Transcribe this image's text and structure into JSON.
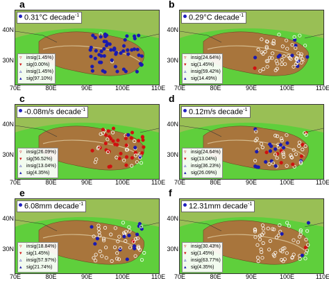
{
  "axes": {
    "x_ticks": [
      "70E",
      "80E",
      "90E",
      "100E",
      "110E"
    ],
    "y_ticks": [
      "40N",
      "30N"
    ]
  },
  "legend_labels": [
    "insig",
    "sig",
    "insig",
    "sig"
  ],
  "colors": {
    "increase": "#1a1ab0",
    "decrease": "#d01010",
    "plateau": "#a8753c",
    "lowland": "#5fcf3c"
  },
  "panels": [
    {
      "letter": "a",
      "title": "0.31°C decade",
      "superscript": "-1",
      "pct": [
        "(1.45%)",
        "(0.00%)",
        "(1.45%)",
        "(97.10%)"
      ]
    },
    {
      "letter": "b",
      "title": "0.29°C decade",
      "superscript": "-1",
      "pct": [
        "(24.64%)",
        "(1.45%)",
        "(59.42%)",
        "(14.49%)"
      ]
    },
    {
      "letter": "c",
      "title": "-0.08m/s decade",
      "superscript": "-1",
      "pct": [
        "(26.09%)",
        "(56.52%)",
        "(13.04%)",
        "(4.35%)"
      ]
    },
    {
      "letter": "d",
      "title": "0.12m/s decade",
      "superscript": "-1",
      "pct": [
        "(24.64%)",
        "(13.04%)",
        "(36.23%)",
        "(26.09%)"
      ]
    },
    {
      "letter": "e",
      "title": "6.08mm decade",
      "superscript": "-1",
      "pct": [
        "(18.84%)",
        "(1.45%)",
        "(57.97%)",
        "(21.74%)"
      ]
    },
    {
      "letter": "f",
      "title": "12.31mm decade",
      "superscript": "-1",
      "pct": [
        "(30.43%)",
        "(1.45%)",
        "(63.77%)",
        "(4.35%)"
      ]
    }
  ]
}
